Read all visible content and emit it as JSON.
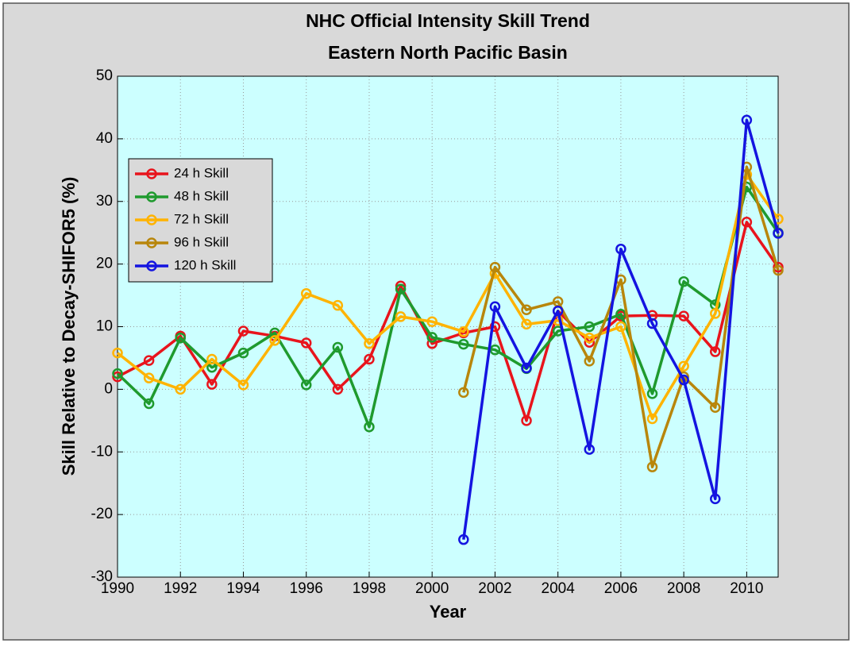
{
  "chart_data": {
    "type": "line",
    "title": "NHC Official Intensity Skill Trend",
    "subtitle": "Eastern North Pacific Basin",
    "x_label": "Year",
    "y_label": "Skill Relative to Decay-SHIFOR5 (%)",
    "x": [
      1990,
      1991,
      1992,
      1993,
      1994,
      1995,
      1996,
      1997,
      1998,
      1999,
      2000,
      2001,
      2002,
      2003,
      2004,
      2005,
      2006,
      2007,
      2008,
      2009,
      2010,
      2011
    ],
    "xlim": [
      1990,
      2011
    ],
    "xticks": [
      1990,
      1992,
      1994,
      1996,
      1998,
      2000,
      2002,
      2004,
      2006,
      2008,
      2010
    ],
    "ylim": [
      -30,
      50
    ],
    "yticks": [
      -30,
      -20,
      -10,
      0,
      10,
      20,
      30,
      40,
      50
    ],
    "grid": true,
    "legend": "upper-left",
    "series": [
      {
        "name": "24 h Skill",
        "color": "#e8141c",
        "values": [
          2,
          4.6,
          8.5,
          0.8,
          9.3,
          8.5,
          7.4,
          0,
          4.8,
          16.5,
          7.3,
          9,
          10,
          -5,
          12.5,
          7.5,
          11.7,
          11.8,
          11.7,
          6,
          26.7,
          19.5
        ]
      },
      {
        "name": "48 h Skill",
        "color": "#1f9a2e",
        "values": [
          2.5,
          -2.3,
          8.2,
          3.5,
          5.8,
          9,
          0.7,
          6.7,
          -6,
          16,
          8.3,
          7.2,
          6.3,
          3.3,
          9.3,
          10,
          12,
          -0.7,
          17.2,
          13.5,
          32.3,
          25
        ]
      },
      {
        "name": "72 h Skill",
        "color": "#ffb300",
        "values": [
          5.8,
          1.8,
          0,
          4.8,
          0.7,
          7.8,
          15.3,
          13.4,
          7.3,
          11.6,
          10.8,
          9.2,
          18.5,
          10.4,
          11,
          8.2,
          10,
          -4.7,
          3.7,
          12.1,
          34.3,
          27.2
        ]
      },
      {
        "name": "96 h Skill",
        "color": "#b8860b",
        "values": [
          null,
          null,
          null,
          null,
          null,
          null,
          null,
          null,
          null,
          null,
          null,
          -0.5,
          19.5,
          12.7,
          14,
          4.5,
          17.5,
          -12.4,
          2,
          -2.9,
          35.5,
          19
        ]
      },
      {
        "name": "120 h Skill",
        "color": "#1414e0",
        "values": [
          null,
          null,
          null,
          null,
          null,
          null,
          null,
          null,
          null,
          null,
          null,
          -24,
          13.2,
          3.4,
          12.5,
          -9.6,
          22.4,
          10.5,
          1.5,
          -17.5,
          43,
          24.9
        ]
      }
    ]
  }
}
